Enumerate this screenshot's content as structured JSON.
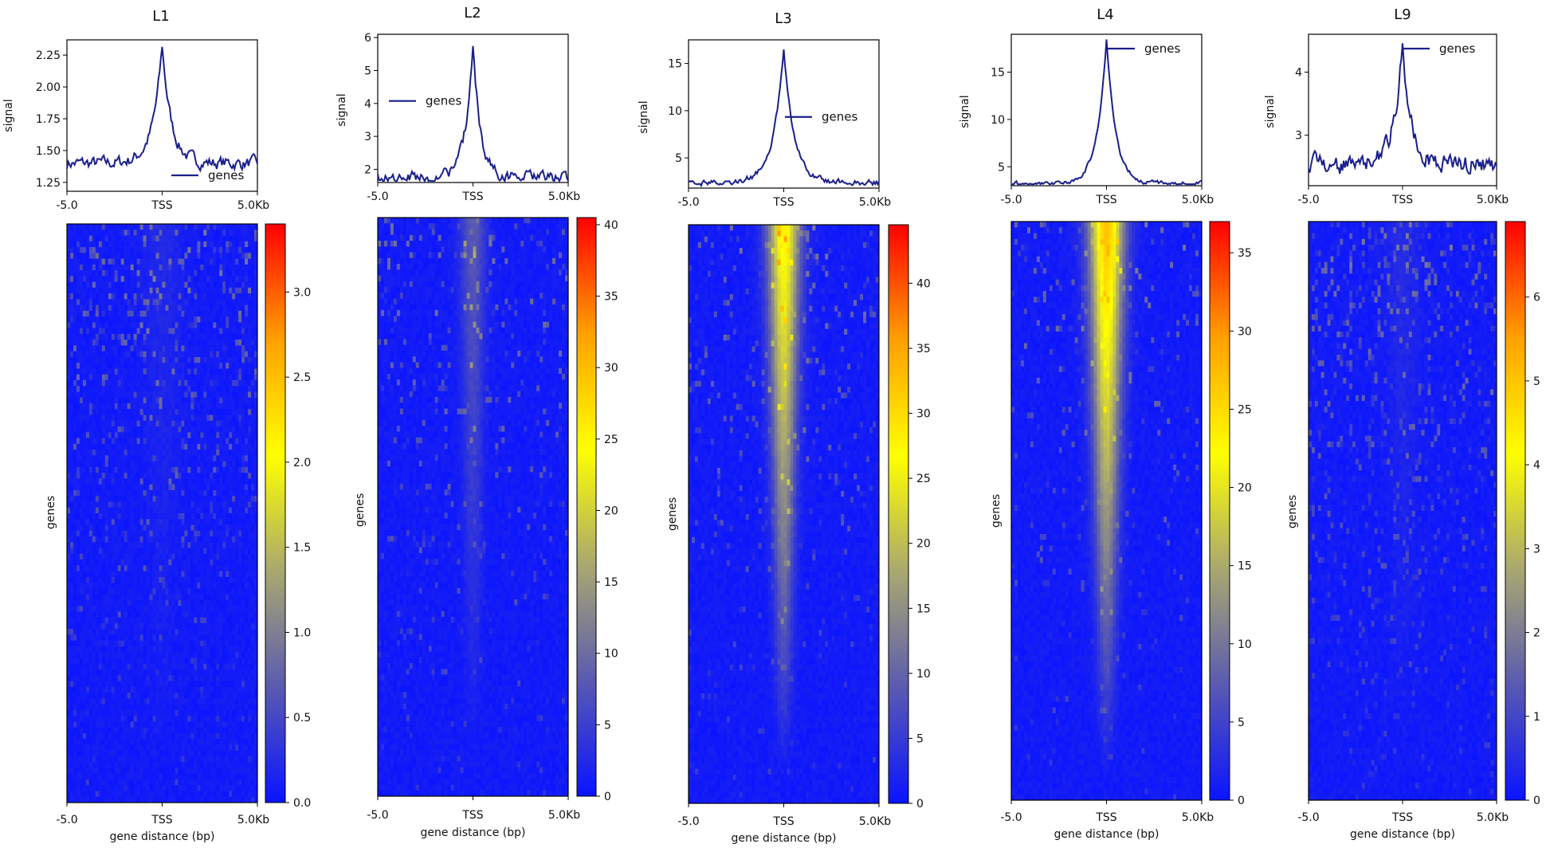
{
  "chart_data": [
    {
      "type": "heatmap",
      "title": "L1",
      "profile": {
        "type": "line",
        "series": [
          {
            "name": "genes",
            "color": "#1a1f8c"
          }
        ],
        "ylabel": "signal",
        "ylim": [
          1.18,
          2.37
        ],
        "yticks": [
          "1.25",
          "1.50",
          "1.75",
          "2.00",
          "2.25"
        ],
        "ytick_values": [
          1.25,
          1.5,
          1.75,
          2.0,
          2.25
        ],
        "baseline": 1.4,
        "peak": 2.32,
        "peak_width": 0.055,
        "noise": 0.1,
        "legend": "bottom-right"
      },
      "heatmap": {
        "ylabel": "genes",
        "xlabel": "gene distance (bp)",
        "colorbar_ticks": [
          "0.0",
          "0.5",
          "1.0",
          "1.5",
          "2.0",
          "2.5",
          "3.0"
        ],
        "colorbar_values": [
          0,
          0.5,
          1.0,
          1.5,
          2.0,
          2.5,
          3.0
        ],
        "zmax": 3.4,
        "center_intensity": 0.04,
        "center_width": 0.07,
        "speckle": 0.18
      },
      "xticks": [
        "-5.0",
        "TSS",
        "5.0Kb"
      ]
    },
    {
      "type": "heatmap",
      "title": "L2",
      "profile": {
        "type": "line",
        "series": [
          {
            "name": "genes",
            "color": "#1a1f8c"
          }
        ],
        "ylabel": "signal",
        "ylim": [
          1.6,
          6.1
        ],
        "yticks": [
          "2",
          "3",
          "4",
          "5",
          "6"
        ],
        "ytick_values": [
          2,
          3,
          4,
          5,
          6
        ],
        "baseline": 1.75,
        "peak": 5.85,
        "peak_width": 0.045,
        "noise": 0.08,
        "legend": "center-left"
      },
      "heatmap": {
        "ylabel": "genes",
        "xlabel": "gene distance (bp)",
        "colorbar_ticks": [
          "0",
          "5",
          "10",
          "15",
          "20",
          "25",
          "30",
          "35",
          "40"
        ],
        "colorbar_values": [
          0,
          5,
          10,
          15,
          20,
          25,
          30,
          35,
          40
        ],
        "zmax": 40.5,
        "center_intensity": 0.18,
        "center_width": 0.045,
        "speckle": 0.12
      },
      "xticks": [
        "-5.0",
        "TSS",
        "5.0Kb"
      ]
    },
    {
      "type": "heatmap",
      "title": "L3",
      "profile": {
        "type": "line",
        "series": [
          {
            "name": "genes",
            "color": "#1a1f8c"
          }
        ],
        "ylabel": "signal",
        "ylim": [
          1.8,
          17.5
        ],
        "yticks": [
          "5",
          "10",
          "15"
        ],
        "ytick_values": [
          5,
          10,
          15
        ],
        "baseline": 2.4,
        "peak": 16.8,
        "peak_width": 0.06,
        "noise": 0.04,
        "legend": "center-right"
      },
      "heatmap": {
        "ylabel": "genes",
        "xlabel": "gene distance (bp)",
        "colorbar_ticks": [
          "0",
          "5",
          "10",
          "15",
          "20",
          "25",
          "30",
          "35",
          "40"
        ],
        "colorbar_values": [
          0,
          5,
          10,
          15,
          20,
          25,
          30,
          35,
          40
        ],
        "zmax": 44.5,
        "center_intensity": 0.62,
        "center_width": 0.055,
        "speckle": 0.1
      },
      "xticks": [
        "-5.0",
        "TSS",
        "5.0Kb"
      ]
    },
    {
      "type": "heatmap",
      "title": "L4",
      "profile": {
        "type": "line",
        "series": [
          {
            "name": "genes",
            "color": "#1a1f8c"
          }
        ],
        "ylabel": "signal",
        "ylim": [
          3.0,
          19.0
        ],
        "yticks": [
          "5",
          "10",
          "15"
        ],
        "ytick_values": [
          5,
          10,
          15
        ],
        "baseline": 3.2,
        "peak": 18.4,
        "peak_width": 0.055,
        "noise": 0.03,
        "legend": "top-right"
      },
      "heatmap": {
        "ylabel": "genes",
        "xlabel": "gene distance (bp)",
        "colorbar_ticks": [
          "0",
          "5",
          "10",
          "15",
          "20",
          "25",
          "30",
          "35"
        ],
        "colorbar_values": [
          0,
          5,
          10,
          15,
          20,
          25,
          30,
          35
        ],
        "zmax": 37,
        "center_intensity": 0.72,
        "center_width": 0.06,
        "speckle": 0.08
      },
      "xticks": [
        "-5.0",
        "TSS",
        "5.0Kb"
      ]
    },
    {
      "type": "heatmap",
      "title": "L9",
      "profile": {
        "type": "line",
        "series": [
          {
            "name": "genes",
            "color": "#1a1f8c"
          }
        ],
        "ylabel": "signal",
        "ylim": [
          2.2,
          4.6
        ],
        "yticks": [
          "3",
          "4"
        ],
        "ytick_values": [
          3,
          4
        ],
        "baseline": 2.55,
        "peak": 4.55,
        "peak_width": 0.05,
        "noise": 0.14,
        "legend": "top-right"
      },
      "heatmap": {
        "ylabel": "genes",
        "xlabel": "gene distance (bp)",
        "colorbar_ticks": [
          "0",
          "1",
          "2",
          "3",
          "4",
          "5",
          "6"
        ],
        "colorbar_values": [
          0,
          1,
          2,
          3,
          4,
          5,
          6
        ],
        "zmax": 6.9,
        "center_intensity": 0.05,
        "center_width": 0.06,
        "speckle": 0.2
      },
      "xticks": [
        "-5.0",
        "TSS",
        "5.0Kb"
      ]
    }
  ],
  "colors": {
    "line": "#1a1f8c",
    "colormap": [
      "#0a14ff",
      "#5a5ab0",
      "#a9a870",
      "#ffff00",
      "#ffa000",
      "#ff0000"
    ]
  }
}
